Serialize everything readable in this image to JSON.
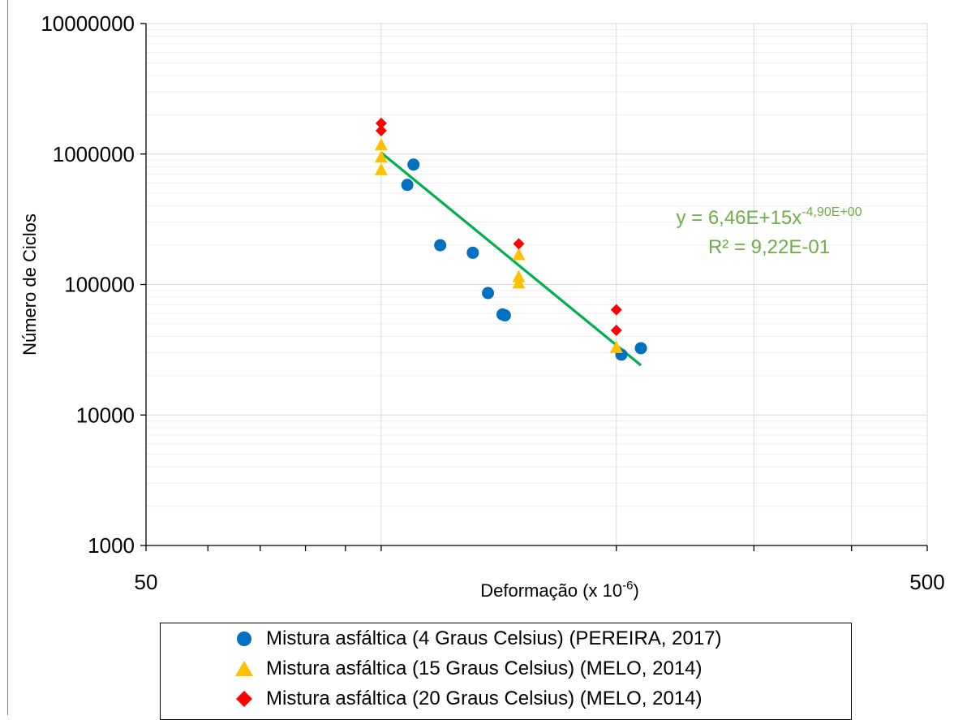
{
  "chart_data": {
    "type": "scatter",
    "x_scale": "log",
    "y_scale": "log",
    "xlim": [
      50,
      500
    ],
    "ylim": [
      1000,
      10000000
    ],
    "x_tick_labels": [
      "50",
      "500"
    ],
    "y_tick_labels": [
      "10000000",
      "1000000",
      "100000",
      "10000",
      "1000"
    ],
    "xlabel": "Deformação  (x 10",
    "xlabel_sup": "-6",
    "xlabel_suffix": ")",
    "ylabel": "Número de Ciclos",
    "grid": true,
    "legend_position": "bottom",
    "series": [
      {
        "name": "Mistura asfáltica (4 Graus Celsius) (PEREIRA, 2017)",
        "marker": "circle",
        "color": "#0070c0",
        "points": [
          {
            "x": 108,
            "y": 580000
          },
          {
            "x": 110,
            "y": 830000
          },
          {
            "x": 119,
            "y": 200000
          },
          {
            "x": 131,
            "y": 175000
          },
          {
            "x": 137,
            "y": 86000
          },
          {
            "x": 143,
            "y": 59000
          },
          {
            "x": 144,
            "y": 58000
          },
          {
            "x": 203,
            "y": 29000
          },
          {
            "x": 215,
            "y": 32500
          }
        ]
      },
      {
        "name": "Mistura asfáltica (15 Graus Celsius) (MELO, 2014)",
        "marker": "triangle",
        "color": "#ffc000",
        "points": [
          {
            "x": 100,
            "y": 1180000
          },
          {
            "x": 100,
            "y": 950000
          },
          {
            "x": 100,
            "y": 760000
          },
          {
            "x": 150,
            "y": 170000
          },
          {
            "x": 150,
            "y": 115000
          },
          {
            "x": 150,
            "y": 103000
          },
          {
            "x": 200,
            "y": 33000
          }
        ]
      },
      {
        "name": "Mistura asfáltica (20 Graus Celsius) (MELO, 2014)",
        "marker": "diamond",
        "color": "#ff0000",
        "points": [
          {
            "x": 100,
            "y": 1720000
          },
          {
            "x": 100,
            "y": 1510000
          },
          {
            "x": 150,
            "y": 205000
          },
          {
            "x": 200,
            "y": 64000
          },
          {
            "x": 200,
            "y": 44500
          }
        ]
      }
    ],
    "trendline": {
      "type": "power",
      "color": "#00b050",
      "coefficient": 6460000000000000.0,
      "exponent": -4.9,
      "x_range": [
        100,
        215
      ],
      "equation_prefix": "y = 6,46E+15x",
      "equation_exponent": "-4,90E+00",
      "r2_label": "R² = 9,22E-01",
      "label_color": "#70ad47"
    }
  }
}
